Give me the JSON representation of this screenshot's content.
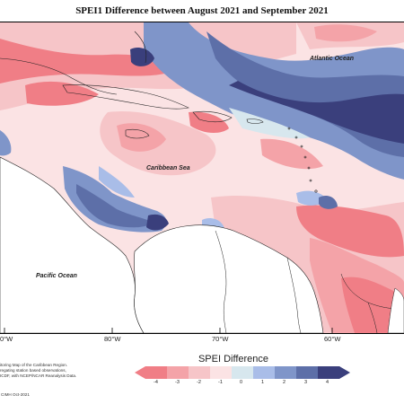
{
  "title": "SPEI1 Difference between August 2021 and September 2021",
  "ocean_labels": {
    "atlantic": "Atlantic Ocean",
    "caribbean": "Caribbean Sea",
    "pacific": "Pacific Ocean"
  },
  "longitude_labels": [
    "80°W",
    "70°W",
    "60°W"
  ],
  "left_edge_label": "0°W",
  "credit_lines": [
    "itoring Map of the Caribbean Region.",
    "regating station based observations,",
    "ICDF, with NCEP/NCAR Reanalysis Data."
  ],
  "copyright": "CIMH Oct-2021",
  "legend": {
    "title": "SPEI Difference",
    "ticks": [
      "-4",
      "-3",
      "-2",
      "-1",
      "0",
      "1",
      "2",
      "3",
      "4"
    ],
    "colors": [
      "#f07e86",
      "#f4a3a8",
      "#f6c5c8",
      "#fbe3e4",
      "#d7e7ee",
      "#a9bde8",
      "#7f95c9",
      "#5d6fa8",
      "#3a3f7c"
    ],
    "arrow_left_color": "#f07e86",
    "arrow_right_color": "#3a3f7c"
  }
}
